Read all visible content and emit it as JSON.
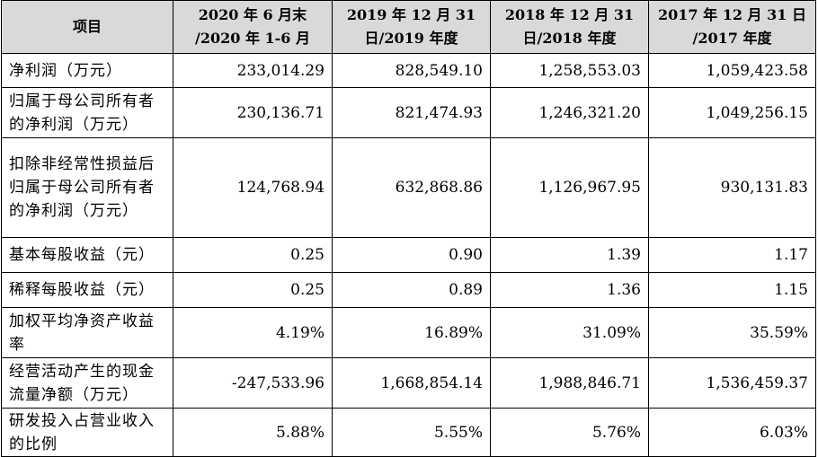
{
  "header": {
    "label": "项目",
    "columns": [
      {
        "line1": "2020 年 6 月末",
        "line2": "/2020 年 1-6 月"
      },
      {
        "line1": "2019 年 12 月 31",
        "line2": "日/2019 年度"
      },
      {
        "line1": "2018 年 12 月 31",
        "line2": "日/2018 年度"
      },
      {
        "line1": "2017 年 12 月 31 日",
        "line2": "/2017 年度"
      }
    ]
  },
  "rows": [
    {
      "label": "净利润（万元）",
      "values": [
        "233,014.29",
        "828,549.10",
        "1,258,553.03",
        "1,059,423.58"
      ]
    },
    {
      "label": "归属于母公司所有者的净利润（万元）",
      "values": [
        "230,136.71",
        "821,474.93",
        "1,246,321.20",
        "1,049,256.15"
      ]
    },
    {
      "label": "扣除非经常性损益后归属于母公司所有者的净利润（万元）",
      "values": [
        "124,768.94",
        "632,868.86",
        "1,126,967.95",
        "930,131.83"
      ]
    },
    {
      "label": "基本每股收益（元）",
      "values": [
        "0.25",
        "0.90",
        "1.39",
        "1.17"
      ]
    },
    {
      "label": "稀释每股收益（元）",
      "values": [
        "0.25",
        "0.89",
        "1.36",
        "1.15"
      ]
    },
    {
      "label": "加权平均净资产收益率",
      "values": [
        "4.19%",
        "16.89%",
        "31.09%",
        "35.59%"
      ]
    },
    {
      "label": "经营活动产生的现金流量净额（万元）",
      "values": [
        "-247,533.96",
        "1,668,854.14",
        "1,988,846.71",
        "1,536,459.37"
      ]
    },
    {
      "label": "研发投入占营业收入的比例",
      "values": [
        "5.88%",
        "5.55%",
        "5.76%",
        "6.03%"
      ]
    }
  ]
}
